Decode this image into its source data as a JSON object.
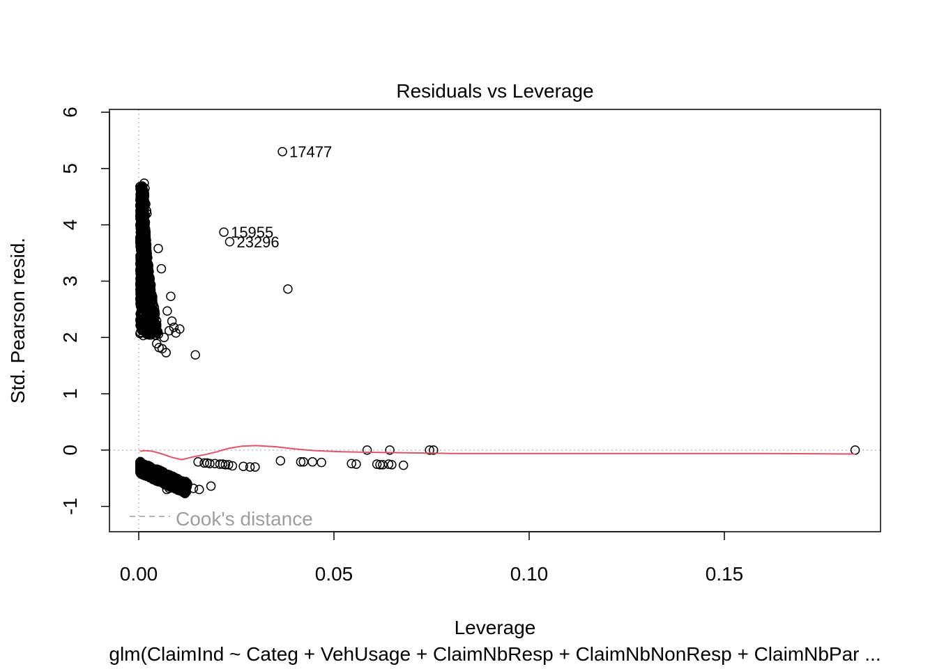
{
  "chart_data": {
    "type": "scatter",
    "title": "Residuals vs Leverage",
    "xlabel": "Leverage",
    "ylabel": "Std. Pearson resid.",
    "subtitle": "glm(ClaimInd ~ Categ + VehUsage + ClaimNbResp + ClaimNbNonResp + ClaimNbPar ...",
    "xlim": [
      -0.0075,
      0.19
    ],
    "ylim": [
      -1.45,
      6.05
    ],
    "x_ticks": [
      0,
      0.05,
      0.1,
      0.15
    ],
    "x_tick_labels": [
      "0.00",
      "0.05",
      "0.10",
      "0.15"
    ],
    "y_ticks": [
      -1,
      0,
      1,
      2,
      3,
      4,
      5,
      6
    ],
    "y_tick_labels": [
      "-1",
      "0",
      "1",
      "2",
      "3",
      "4",
      "5",
      "6"
    ],
    "reference_lines": {
      "h": 0,
      "v": 0
    },
    "legend": {
      "position": "bottom-left",
      "label": "Cook's distance"
    },
    "labeled_points": [
      {
        "x": 0.0368,
        "y": 5.3,
        "label": "17477"
      },
      {
        "x": 0.0218,
        "y": 3.87,
        "label": "15955"
      },
      {
        "x": 0.0233,
        "y": 3.7,
        "label": "23296"
      }
    ],
    "upper_cluster": {
      "x_min": 0.0003,
      "x_max": 0.0075,
      "y_top": 4.7,
      "y_bottom": 1.8
    },
    "lower_cluster": {
      "x_min": 0.0003,
      "x_max": 0.0125,
      "y_top": -0.2,
      "y_bottom": -0.7
    },
    "points": [
      [
        0.0014,
        4.74
      ],
      [
        0.0016,
        4.65
      ],
      [
        0.0015,
        4.42
      ],
      [
        0.0018,
        4.37
      ],
      [
        0.0012,
        4.28
      ],
      [
        0.0008,
        4.18
      ],
      [
        0.002,
        4.25
      ],
      [
        0.0021,
        4.2
      ],
      [
        0.005,
        3.58
      ],
      [
        0.0058,
        3.22
      ],
      [
        0.0082,
        2.73
      ],
      [
        0.0105,
        2.15
      ],
      [
        0.0095,
        2.08
      ],
      [
        0.009,
        2.18
      ],
      [
        0.0085,
        2.29
      ],
      [
        0.0073,
        2.47
      ],
      [
        0.0078,
        2.12
      ],
      [
        0.0065,
        2.0
      ],
      [
        0.006,
        1.8
      ],
      [
        0.007,
        1.73
      ],
      [
        0.0052,
        1.82
      ],
      [
        0.0046,
        1.89
      ],
      [
        0.0145,
        1.69
      ],
      [
        0.0382,
        2.86
      ],
      [
        0.0363,
        -0.19
      ],
      [
        0.0415,
        -0.21
      ],
      [
        0.0422,
        -0.21
      ],
      [
        0.0445,
        -0.21
      ],
      [
        0.0468,
        -0.22
      ],
      [
        0.0545,
        -0.24
      ],
      [
        0.0557,
        -0.25
      ],
      [
        0.061,
        -0.25
      ],
      [
        0.0618,
        -0.26
      ],
      [
        0.0625,
        -0.26
      ],
      [
        0.064,
        -0.25
      ],
      [
        0.0648,
        -0.26
      ],
      [
        0.0678,
        -0.27
      ],
      [
        0.0585,
        0.0
      ],
      [
        0.0643,
        0.0
      ],
      [
        0.0745,
        0.0
      ],
      [
        0.0755,
        0.0
      ],
      [
        0.1835,
        0.0
      ],
      [
        0.0152,
        -0.21
      ],
      [
        0.0168,
        -0.23
      ],
      [
        0.0175,
        -0.23
      ],
      [
        0.0182,
        -0.24
      ],
      [
        0.0195,
        -0.24
      ],
      [
        0.0208,
        -0.25
      ],
      [
        0.0215,
        -0.25
      ],
      [
        0.0222,
        -0.26
      ],
      [
        0.023,
        -0.26
      ],
      [
        0.024,
        -0.28
      ],
      [
        0.0268,
        -0.29
      ],
      [
        0.0285,
        -0.3
      ],
      [
        0.0298,
        -0.3
      ],
      [
        0.0185,
        -0.64
      ],
      [
        0.0155,
        -0.7
      ],
      [
        0.014,
        -0.68
      ],
      [
        0.0125,
        -0.6
      ],
      [
        0.011,
        -0.55
      ],
      [
        0.0095,
        -0.5
      ],
      [
        0.0088,
        -0.57
      ],
      [
        0.0078,
        -0.68
      ],
      [
        0.0072,
        -0.7
      ]
    ]
  },
  "colors": {
    "points": "#000000",
    "smooth": "#DF536B",
    "reference": "#BEBEBE",
    "legend_text": "#9E9E9E",
    "frame": "#000000"
  }
}
